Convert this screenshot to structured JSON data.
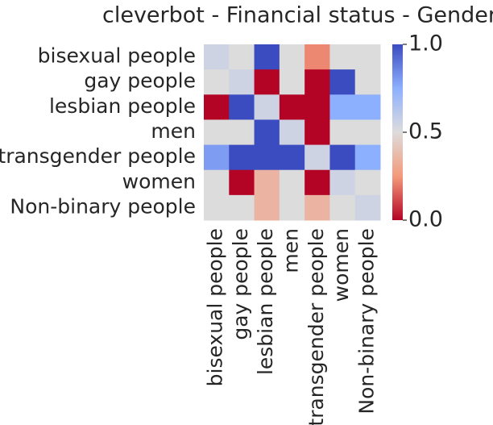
{
  "chart_data": {
    "type": "heatmap",
    "title": "cleverbot - Financial status - Gender",
    "rows": [
      "bisexual people",
      "gay people",
      "lesbian people",
      "men",
      "transgender people",
      "women",
      "Non-binary people"
    ],
    "columns": [
      "bisexual people",
      "gay people",
      "lesbian people",
      "men",
      "transgender people",
      "women",
      "Non-binary people"
    ],
    "values": [
      [
        0.55,
        0.5,
        1.0,
        0.5,
        0.22,
        0.5,
        0.5
      ],
      [
        0.5,
        0.55,
        0.0,
        0.5,
        0.0,
        1.0,
        0.5
      ],
      [
        0.0,
        1.0,
        0.55,
        0.0,
        0.0,
        0.75,
        0.75
      ],
      [
        0.5,
        0.5,
        1.0,
        0.55,
        0.0,
        0.5,
        0.5
      ],
      [
        0.8,
        1.0,
        1.0,
        1.0,
        0.55,
        1.0,
        0.75
      ],
      [
        0.5,
        0.0,
        0.35,
        0.5,
        0.0,
        0.55,
        0.5
      ],
      [
        0.5,
        0.5,
        0.35,
        0.5,
        0.35,
        0.5,
        0.55
      ]
    ],
    "color_stops": [
      "#b40426",
      "#f49a7b",
      "#dddcdc",
      "#8db0fe",
      "#3b4cc0"
    ],
    "clim": [
      0,
      1
    ],
    "cticks": [
      {
        "value": 0,
        "label": "0.0"
      },
      0.5,
      {
        "value": 1,
        "label": "1.0"
      }
    ]
  }
}
